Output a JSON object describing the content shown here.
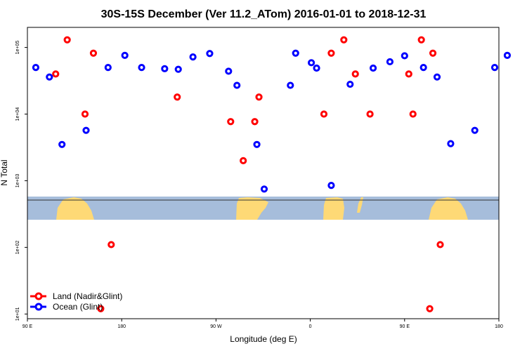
{
  "colors": {
    "land": "#ff0000",
    "ocean": "#0000ff",
    "map_ocean": "#a6bddb",
    "map_land": "#fed976"
  },
  "chart_data": {
    "type": "scatter",
    "title": "30S-15S December (Ver 11.2_ATom)   2016-01-01 to 2018-12-31",
    "xlabel": "Longitude (deg E)",
    "ylabel": "N Total",
    "y_scale": "log",
    "xlim": [
      90,
      540
    ],
    "ylim": [
      8.5,
      200000
    ],
    "x_ticks": [
      {
        "value": 90,
        "label": "90 E"
      },
      {
        "value": 180,
        "label": "180"
      },
      {
        "value": 270,
        "label": "90 W"
      },
      {
        "value": 360,
        "label": "0"
      },
      {
        "value": 450,
        "label": "90 E"
      },
      {
        "value": 540,
        "label": "180"
      }
    ],
    "y_ticks": [
      {
        "value": 10,
        "label": "1e+01"
      },
      {
        "value": 100,
        "label": "1e+02"
      },
      {
        "value": 1000,
        "label": "1e+03"
      },
      {
        "value": 10000,
        "label": "1e+04"
      },
      {
        "value": 100000,
        "label": "1e+05"
      }
    ],
    "legend": {
      "position": "bottom-left",
      "items": [
        {
          "label": "Land (Nadir&Glint)",
          "series": "land"
        },
        {
          "label": "Ocean (Glint)",
          "series": "ocean"
        }
      ]
    },
    "series": [
      {
        "name": "Land (Nadir&Glint)",
        "key": "land",
        "x": [
          117,
          128,
          153,
          145,
          170,
          160,
          233,
          284,
          296,
          307,
          311,
          380,
          373,
          392,
          403,
          417,
          454,
          466,
          477,
          458,
          484,
          474
        ],
        "y": [
          40000,
          130000,
          82000,
          10000,
          110,
          12,
          18000,
          7700,
          2000,
          7700,
          18000,
          82000,
          10000,
          130000,
          40000,
          10000,
          40000,
          130000,
          82000,
          10000,
          110,
          12
        ]
      },
      {
        "name": "Ocean (Glint)",
        "key": "ocean",
        "x": [
          98,
          111,
          123,
          146,
          167,
          183,
          199,
          221,
          234,
          248,
          264,
          282,
          290,
          309,
          316,
          341,
          346,
          361,
          366,
          380,
          398,
          420,
          436,
          450,
          468,
          481,
          494,
          517,
          536,
          548
        ],
        "y": [
          50000,
          36000,
          3500,
          5700,
          50000,
          76000,
          50000,
          48000,
          47000,
          72000,
          81000,
          44000,
          27000,
          3500,
          750,
          27000,
          82000,
          59000,
          49000,
          850,
          28000,
          49000,
          61000,
          75000,
          50000,
          36000,
          3600,
          5700,
          50000,
          76000
        ]
      }
    ]
  }
}
